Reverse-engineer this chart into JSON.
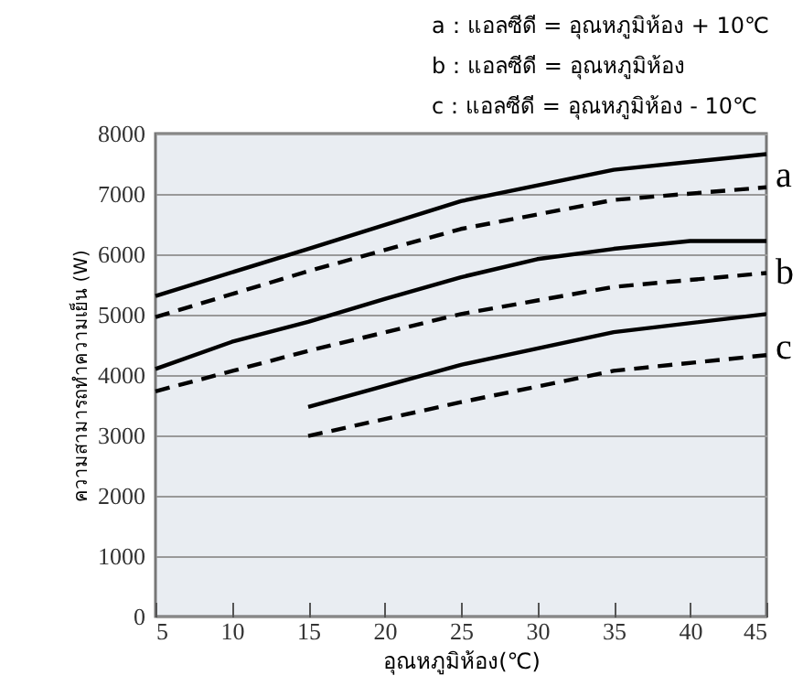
{
  "chart_data": {
    "type": "line",
    "xlabel": "อุณหภูมิห้อง(℃)",
    "ylabel": "ความสามารถทำความเย็น (W)",
    "annotations": [
      "a：แอลซีดี = อุณหภูมิห้อง + 10℃",
      "b：แอลซีดี = อุณหภูมิห้อง",
      "c：แอลซีดี = อุณหภูมิห้อง - 10℃",
      "a",
      "b",
      "c"
    ],
    "xlim": [
      5,
      45
    ],
    "xticks": [
      5,
      10,
      15,
      20,
      25,
      30,
      35,
      40,
      45
    ],
    "ylim": [
      0,
      8000
    ],
    "yticks": [
      0,
      1000,
      2000,
      3000,
      4000,
      5000,
      6000,
      7000,
      8000
    ],
    "grid": "y",
    "series": [
      {
        "color": "#000000",
        "line_style": "solid",
        "x": [
          5,
          15,
          25,
          35,
          45
        ],
        "values": [
          5310,
          6090,
          6880,
          7400,
          7660
        ]
      },
      {
        "color": "#000000",
        "line_style": "dashed",
        "x": [
          5,
          15,
          25,
          35,
          45
        ],
        "values": [
          4960,
          5720,
          6420,
          6900,
          7110
        ]
      },
      {
        "color": "#000000",
        "line_style": "solid",
        "x": [
          5,
          10,
          15,
          20,
          25,
          30,
          35,
          40,
          45
        ],
        "values": [
          4100,
          4550,
          4880,
          5260,
          5620,
          5920,
          6090,
          6220,
          6220
        ]
      },
      {
        "color": "#000000",
        "line_style": "dashed",
        "x": [
          5,
          15,
          25,
          35,
          45
        ],
        "values": [
          3730,
          4400,
          5010,
          5460,
          5690
        ]
      },
      {
        "color": "#000000",
        "line_style": "solid",
        "x": [
          15,
          25,
          35,
          45
        ],
        "values": [
          3470,
          4170,
          4710,
          5010
        ]
      },
      {
        "color": "#000000",
        "line_style": "dashed",
        "x": [
          15,
          25,
          35,
          45
        ],
        "values": [
          2990,
          3550,
          4070,
          4330
        ]
      }
    ]
  }
}
